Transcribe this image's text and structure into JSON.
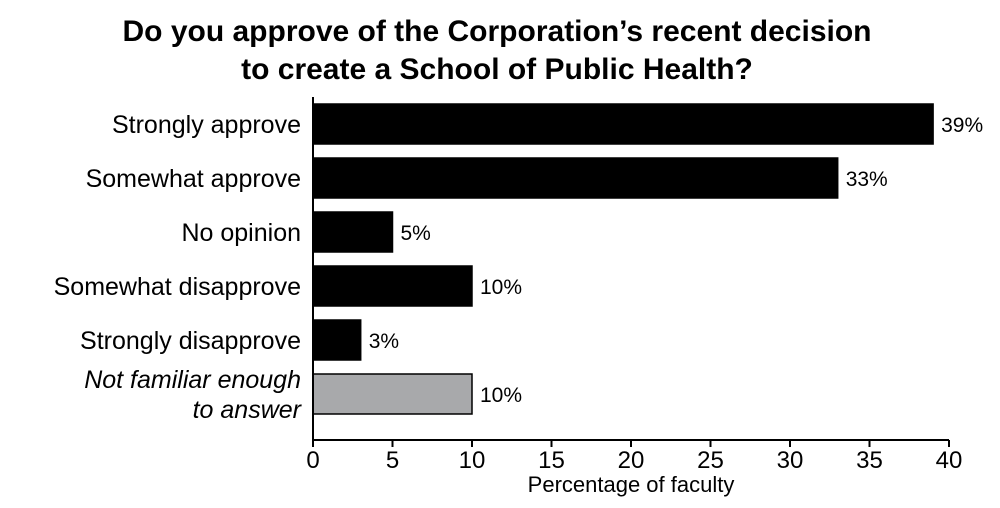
{
  "chart_data": {
    "type": "bar",
    "orientation": "horizontal",
    "title": "Do you approve of the Corporation’s recent decision to create a School of Public Health?",
    "title_lines": [
      "Do you approve of the Corporation’s recent decision",
      "to create a School of Public Health?"
    ],
    "xlabel": "Percentage of faculty",
    "ylabel": "",
    "xlim": [
      0,
      40
    ],
    "x_ticks": [
      "0",
      "5",
      "10",
      "15",
      "20",
      "25",
      "30",
      "35",
      "40"
    ],
    "grid": false,
    "categories": [
      {
        "lines": [
          "Strongly approve"
        ],
        "italic": false
      },
      {
        "lines": [
          "Somewhat approve"
        ],
        "italic": false
      },
      {
        "lines": [
          "No opinion"
        ],
        "italic": false
      },
      {
        "lines": [
          "Somewhat disapprove"
        ],
        "italic": false
      },
      {
        "lines": [
          "Strongly disapprove"
        ],
        "italic": false
      },
      {
        "lines": [
          "Not familiar enough",
          "to answer"
        ],
        "italic": true
      }
    ],
    "values": [
      39,
      33,
      5,
      10,
      3,
      10
    ],
    "value_labels": [
      "39%",
      "33%",
      "5%",
      "10%",
      "3%",
      "10%"
    ],
    "bar_colors": [
      "#000000",
      "#000000",
      "#000000",
      "#000000",
      "#000000",
      "#a8a9ab"
    ]
  }
}
